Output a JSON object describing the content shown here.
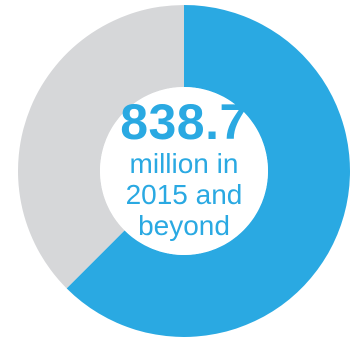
{
  "colors": {
    "primary": "#2aa9e2",
    "remainder": "#d6d7d9",
    "background": "#ffffff"
  },
  "chart_data": {
    "type": "pie",
    "variant": "donut",
    "slices": [
      {
        "value": 62.5,
        "color": "#2aa9e2"
      },
      {
        "value": 37.5,
        "color": "#d6d7d9"
      }
    ],
    "start": "top, clockwise",
    "center_label": {
      "value": "838.7",
      "lines": [
        "million in",
        "2015 and",
        "beyond"
      ]
    }
  }
}
